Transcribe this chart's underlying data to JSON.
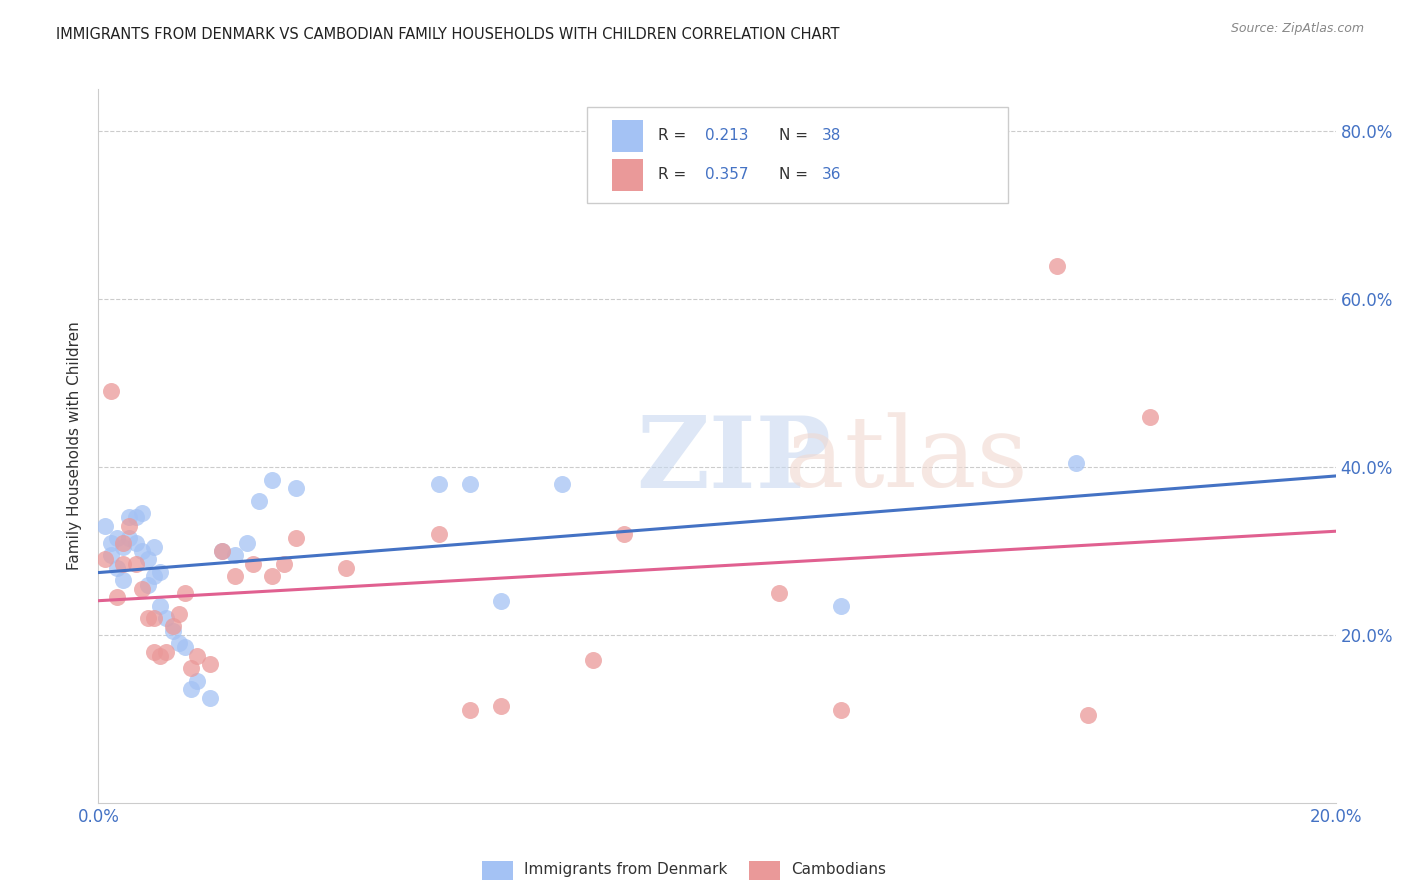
{
  "title": "IMMIGRANTS FROM DENMARK VS CAMBODIAN FAMILY HOUSEHOLDS WITH CHILDREN CORRELATION CHART",
  "source": "Source: ZipAtlas.com",
  "xlabel_blue": "Immigrants from Denmark",
  "xlabel_pink": "Cambodians",
  "ylabel": "Family Households with Children",
  "xlim": [
    0.0,
    0.2
  ],
  "ylim": [
    0.0,
    0.85
  ],
  "xticks": [
    0.0,
    0.04,
    0.08,
    0.12,
    0.16,
    0.2
  ],
  "yticks": [
    0.2,
    0.4,
    0.6,
    0.8
  ],
  "legend_r_blue": "0.213",
  "legend_n_blue": "38",
  "legend_r_pink": "0.357",
  "legend_n_pink": "36",
  "blue_color": "#a4c2f4",
  "pink_color": "#ea9999",
  "line_blue": "#4472c4",
  "line_pink": "#e06090",
  "tick_color": "#4472c4",
  "blue_x": [
    0.001,
    0.002,
    0.002,
    0.003,
    0.003,
    0.004,
    0.004,
    0.005,
    0.005,
    0.006,
    0.006,
    0.007,
    0.007,
    0.008,
    0.008,
    0.009,
    0.009,
    0.01,
    0.01,
    0.011,
    0.012,
    0.013,
    0.014,
    0.015,
    0.016,
    0.018,
    0.02,
    0.022,
    0.024,
    0.026,
    0.028,
    0.032,
    0.055,
    0.06,
    0.065,
    0.075,
    0.12,
    0.158
  ],
  "blue_y": [
    0.33,
    0.31,
    0.295,
    0.315,
    0.28,
    0.305,
    0.265,
    0.34,
    0.315,
    0.34,
    0.31,
    0.345,
    0.3,
    0.29,
    0.26,
    0.305,
    0.27,
    0.275,
    0.235,
    0.22,
    0.205,
    0.19,
    0.185,
    0.135,
    0.145,
    0.125,
    0.3,
    0.295,
    0.31,
    0.36,
    0.385,
    0.375,
    0.38,
    0.38,
    0.24,
    0.38,
    0.235,
    0.405
  ],
  "pink_x": [
    0.001,
    0.002,
    0.003,
    0.004,
    0.004,
    0.005,
    0.006,
    0.007,
    0.008,
    0.009,
    0.009,
    0.01,
    0.011,
    0.012,
    0.013,
    0.014,
    0.015,
    0.016,
    0.018,
    0.02,
    0.022,
    0.025,
    0.028,
    0.03,
    0.032,
    0.04,
    0.055,
    0.06,
    0.065,
    0.08,
    0.085,
    0.11,
    0.12,
    0.155,
    0.16,
    0.17
  ],
  "pink_y": [
    0.29,
    0.49,
    0.245,
    0.31,
    0.285,
    0.33,
    0.285,
    0.255,
    0.22,
    0.22,
    0.18,
    0.175,
    0.18,
    0.21,
    0.225,
    0.25,
    0.16,
    0.175,
    0.165,
    0.3,
    0.27,
    0.285,
    0.27,
    0.285,
    0.315,
    0.28,
    0.32,
    0.11,
    0.115,
    0.17,
    0.32,
    0.25,
    0.11,
    0.64,
    0.105,
    0.46
  ]
}
